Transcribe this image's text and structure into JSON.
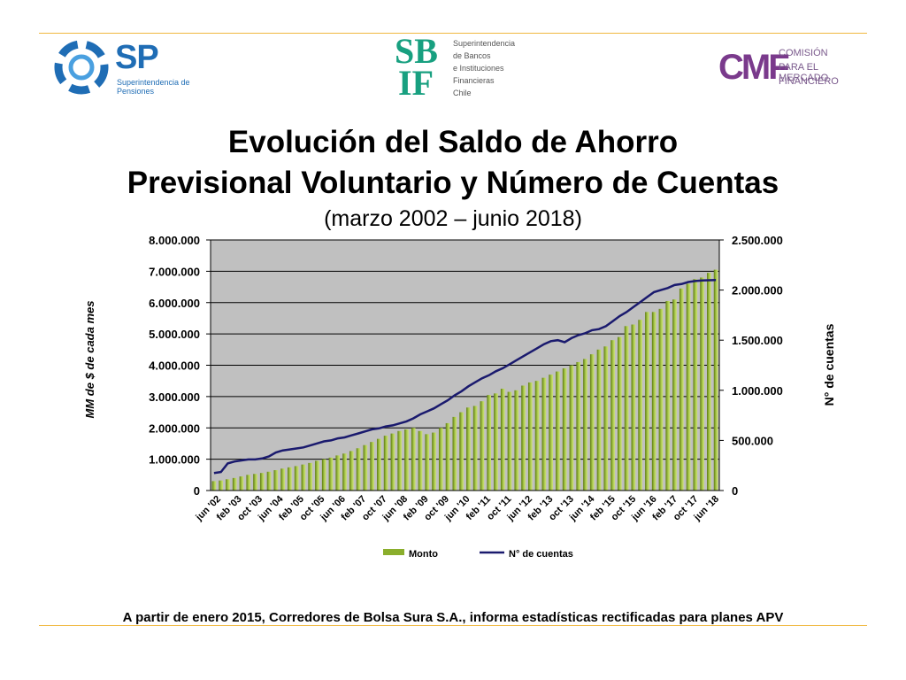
{
  "header": {
    "logos": [
      {
        "name": "sp",
        "mark": "SP",
        "caption_lines": [
          "Superintendencia de",
          "Pensiones"
        ],
        "color": "#1f6db5"
      },
      {
        "name": "sbif",
        "mark_top": "SB",
        "mark_bottom": "IF",
        "caption_lines": [
          "Superintendencia",
          "de Bancos",
          "e Instituciones",
          "Financieras",
          "Chile"
        ],
        "color": "#18a080"
      },
      {
        "name": "cmf",
        "mark": "CMF",
        "caption_lines": [
          "COMISIÓN",
          "PARA EL MERCADO",
          "FINANCIERO"
        ],
        "color": "#7a3a8c"
      }
    ]
  },
  "title_line1": "Evolución del Saldo de Ahorro",
  "title_line2": "Previsional Voluntario y Número de Cuentas",
  "subtitle": "(marzo 2002 – junio 2018)",
  "footnote": "A partir de enero 2015, Corredores de Bolsa Sura S.A., informa estadísticas rectificadas para planes APV",
  "chart_data": {
    "type": "bar",
    "ylabel": "MM de $ de cada mes",
    "y2label": "N° de cuentas",
    "ylim": [
      0,
      8000000
    ],
    "y2lim": [
      0,
      2500000
    ],
    "yticks": [
      "8.000.000",
      "7.000.000",
      "6.000.000",
      "5.000.000",
      "4.000.000",
      "3.000.000",
      "2.000.000",
      "1.000.000",
      "0"
    ],
    "y2ticks": [
      "2.500.000",
      "2.000.000",
      "1.500.000",
      "1.000.000",
      "500.000",
      "0"
    ],
    "x_tick_labels": [
      "jun '02",
      "feb '03",
      "oct '03",
      "jun '04",
      "feb '05",
      "oct '05",
      "jun '06",
      "feb '07",
      "oct '07",
      "jun '08",
      "feb '09",
      "oct '09",
      "jun '10",
      "feb '11",
      "oct '11",
      "jun '12",
      "feb '13",
      "oct '13",
      "jun '14",
      "feb '15",
      "oct '15",
      "jun '16",
      "feb '17",
      "oct '17",
      "jun '18"
    ],
    "grid": true,
    "legend_position": "bottom",
    "series": [
      {
        "name": "Monto",
        "axis": "left",
        "kind": "bar",
        "color": "#8aae2c",
        "values": [
          300000,
          320000,
          360000,
          400000,
          450000,
          500000,
          530000,
          560000,
          600000,
          650000,
          700000,
          740000,
          780000,
          830000,
          880000,
          950000,
          1000000,
          1050000,
          1120000,
          1180000,
          1260000,
          1350000,
          1450000,
          1550000,
          1650000,
          1750000,
          1820000,
          1900000,
          1950000,
          2000000,
          1900000,
          1800000,
          1850000,
          2000000,
          2150000,
          2350000,
          2500000,
          2650000,
          2700000,
          2850000,
          3050000,
          3100000,
          3250000,
          3150000,
          3200000,
          3350000,
          3450000,
          3500000,
          3600000,
          3700000,
          3800000,
          3900000,
          4000000,
          4100000,
          4200000,
          4350000,
          4500000,
          4600000,
          4800000,
          4900000,
          5250000,
          5300000,
          5450000,
          5700000,
          5700000,
          5800000,
          6050000,
          6100000,
          6450000,
          6600000,
          6750000,
          6800000,
          6950000,
          7050000
        ]
      },
      {
        "name": "N° de cuentas",
        "axis": "right",
        "kind": "line",
        "color": "#1a1a6e",
        "values": [
          175000,
          185000,
          270000,
          290000,
          300000,
          310000,
          310000,
          320000,
          340000,
          380000,
          400000,
          410000,
          420000,
          430000,
          450000,
          470000,
          490000,
          500000,
          520000,
          530000,
          550000,
          570000,
          590000,
          610000,
          620000,
          640000,
          650000,
          670000,
          690000,
          720000,
          760000,
          790000,
          820000,
          860000,
          900000,
          950000,
          990000,
          1040000,
          1080000,
          1120000,
          1150000,
          1190000,
          1220000,
          1260000,
          1300000,
          1340000,
          1380000,
          1420000,
          1460000,
          1490000,
          1500000,
          1480000,
          1520000,
          1550000,
          1570000,
          1600000,
          1610000,
          1640000,
          1690000,
          1740000,
          1780000,
          1830000,
          1880000,
          1930000,
          1980000,
          2000000,
          2020000,
          2050000,
          2060000,
          2080000,
          2090000,
          2095000,
          2098000,
          2100000
        ]
      }
    ]
  }
}
